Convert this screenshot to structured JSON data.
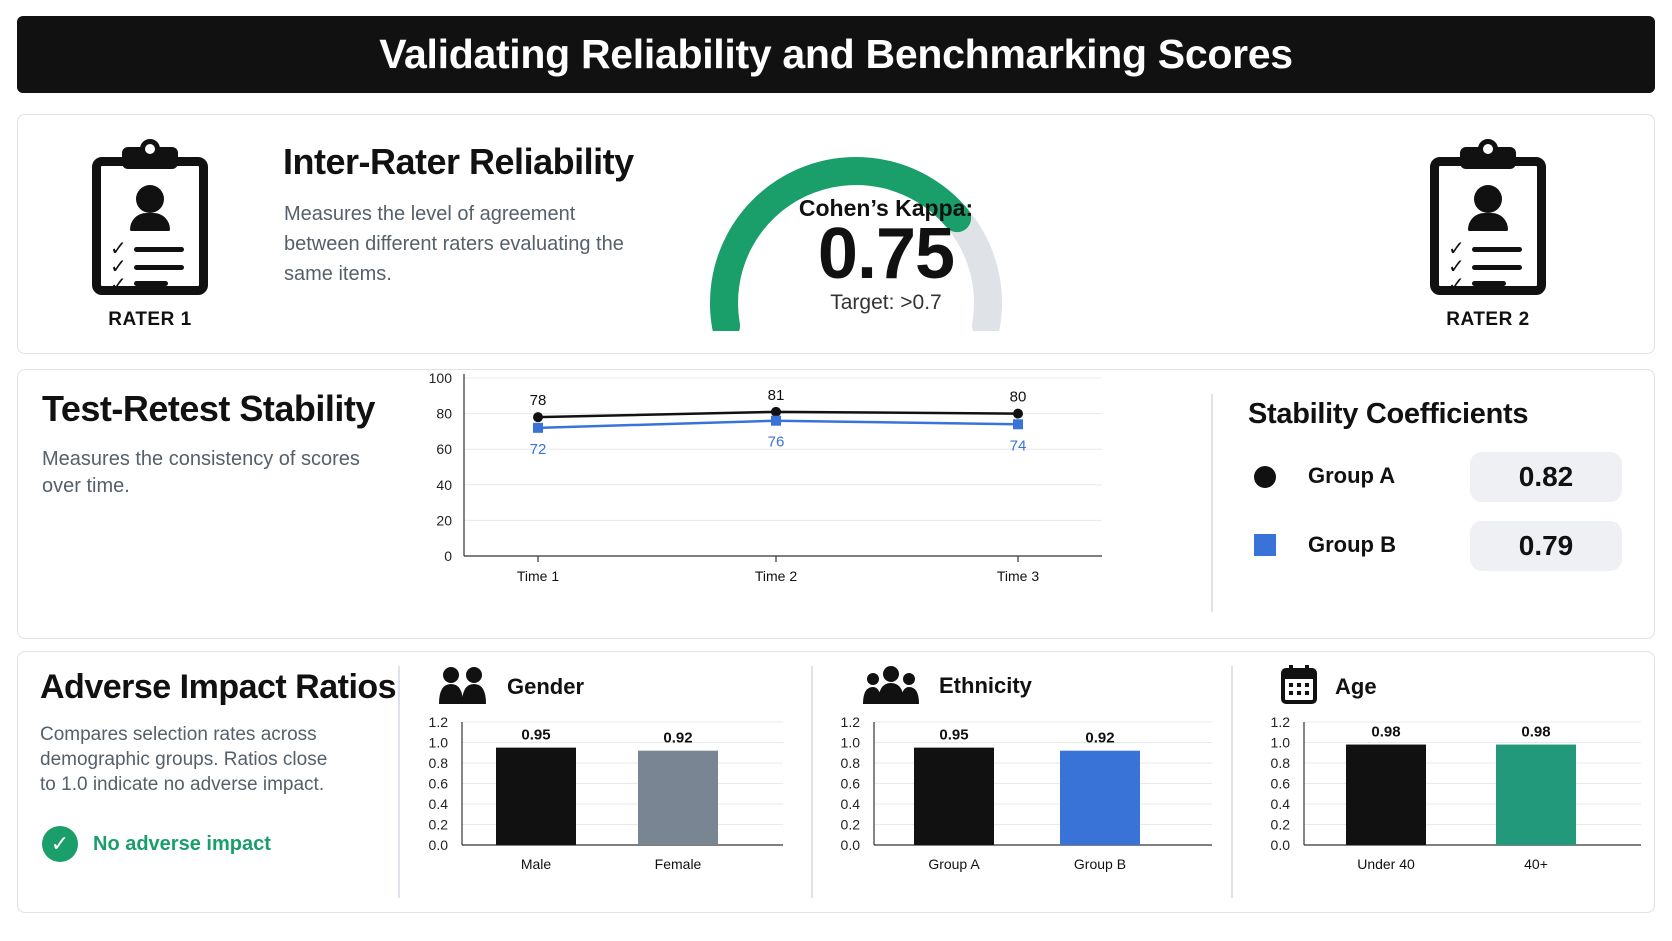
{
  "header": {
    "title": "Validating Reliability and Benchmarking Scores"
  },
  "inter_rater": {
    "title": "Inter-Rater Reliability",
    "description": "Measures the level of agreement between different raters evaluating the same items.",
    "rater1": "RATER 1",
    "rater2": "RATER 2",
    "gauge": {
      "label": "Cohen’s Kappa:",
      "value": "0.75",
      "fraction": 0.75,
      "target": "Target: >0.7",
      "fill_color": "#1a9e6a",
      "track_color": "#dfe3e8"
    }
  },
  "test_retest": {
    "title": "Test-Retest Stability",
    "description": "Measures the consistency of scores over time.",
    "coefficients_title": "Stability Coefficients",
    "coefficients": [
      {
        "name": "Group A",
        "value": "0.82",
        "marker": "circle",
        "color": "#111111"
      },
      {
        "name": "Group B",
        "value": "0.79",
        "marker": "square",
        "color": "#3a73d8"
      }
    ]
  },
  "adverse_impact": {
    "title": "Adverse Impact Ratios",
    "description": "Compares selection rates across demographic groups. Ratios close to 1.0 indicate no adverse impact.",
    "status": "No adverse impact",
    "status_color": "#1a9e6a",
    "panels": [
      {
        "title": "Gender",
        "icon": "people-icon"
      },
      {
        "title": "Ethnicity",
        "icon": "group-icon"
      },
      {
        "title": "Age",
        "icon": "calendar-icon"
      }
    ]
  },
  "chart_data": [
    {
      "type": "line",
      "x": [
        "Time 1",
        "Time 2",
        "Time 3"
      ],
      "series": [
        {
          "name": "Group A",
          "values": [
            78,
            81,
            80
          ],
          "color": "#111111",
          "marker": "circle"
        },
        {
          "name": "Group B",
          "values": [
            72,
            76,
            74
          ],
          "color": "#3a73d8",
          "marker": "square"
        }
      ],
      "ylim": [
        0,
        100
      ],
      "yticks": [
        0,
        20,
        40,
        60,
        80,
        100
      ],
      "grid": true
    },
    {
      "type": "bar",
      "categories": [
        "Male",
        "Female"
      ],
      "values": [
        0.95,
        0.92
      ],
      "labels": [
        "0.95",
        "0.92"
      ],
      "colors": [
        "#111111",
        "#7a8593"
      ],
      "ylim": [
        0,
        1.2
      ],
      "yticks": [
        "0.0",
        "0.2",
        "0.4",
        "0.6",
        "0.8",
        "1.0",
        "1.2"
      ],
      "grid": true
    },
    {
      "type": "bar",
      "categories": [
        "Group A",
        "Group B"
      ],
      "values": [
        0.95,
        0.92
      ],
      "labels": [
        "0.95",
        "0.92"
      ],
      "colors": [
        "#111111",
        "#3a73d8"
      ],
      "ylim": [
        0,
        1.2
      ],
      "yticks": [
        "0.0",
        "0.2",
        "0.4",
        "0.6",
        "0.8",
        "1.0",
        "1.2"
      ],
      "grid": true
    },
    {
      "type": "bar",
      "categories": [
        "Under 40",
        "40+"
      ],
      "values": [
        0.98,
        0.98
      ],
      "labels": [
        "0.98",
        "0.98"
      ],
      "colors": [
        "#111111",
        "#22997a"
      ],
      "ylim": [
        0,
        1.2
      ],
      "yticks": [
        "0.0",
        "0.2",
        "0.4",
        "0.6",
        "0.8",
        "1.0",
        "1.2"
      ],
      "grid": true
    }
  ]
}
